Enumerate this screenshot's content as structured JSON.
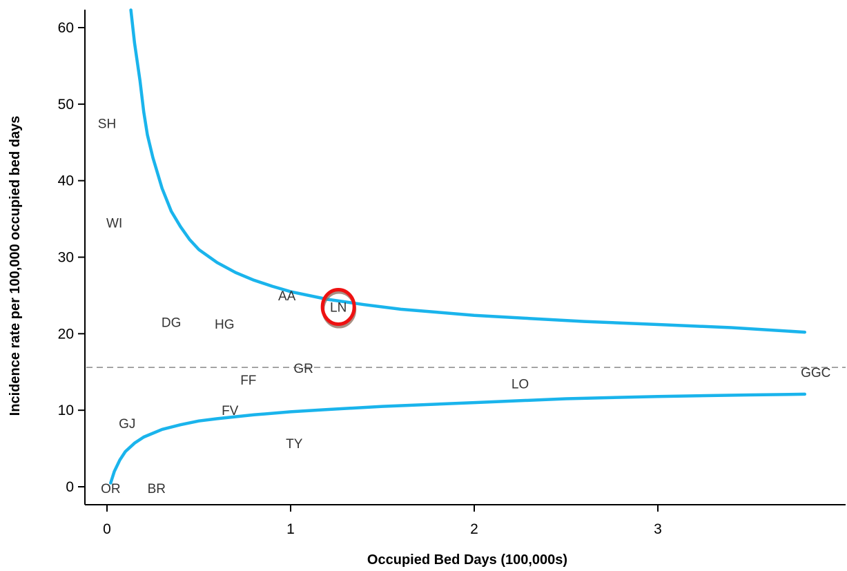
{
  "chart_data": {
    "type": "scatter",
    "title": "",
    "xlabel": "Occupied Bed Days (100,000s)",
    "ylabel": "Incidence rate per 100,000 occupied bed days",
    "xlim": [
      -0.12,
      4.05
    ],
    "ylim": [
      -2.5,
      62.5
    ],
    "x_ticks": [
      0,
      1,
      2,
      3
    ],
    "y_ticks": [
      0,
      10,
      20,
      30,
      40,
      50,
      60
    ],
    "grid": false,
    "mean_line": {
      "y": 15.6,
      "style": "dashed",
      "color": "#888888"
    },
    "control_limits": {
      "color": "#1ab4ec",
      "upper": [
        [
          0.13,
          62.3
        ],
        [
          0.15,
          58.0
        ],
        [
          0.18,
          53.0
        ],
        [
          0.2,
          49.0
        ],
        [
          0.22,
          46.0
        ],
        [
          0.25,
          43.0
        ],
        [
          0.3,
          39.0
        ],
        [
          0.35,
          36.0
        ],
        [
          0.4,
          34.0
        ],
        [
          0.45,
          32.3
        ],
        [
          0.5,
          31.0
        ],
        [
          0.6,
          29.3
        ],
        [
          0.7,
          28.0
        ],
        [
          0.8,
          27.0
        ],
        [
          0.9,
          26.2
        ],
        [
          1.0,
          25.5
        ],
        [
          1.2,
          24.5
        ],
        [
          1.4,
          23.8
        ],
        [
          1.6,
          23.2
        ],
        [
          1.8,
          22.8
        ],
        [
          2.0,
          22.4
        ],
        [
          2.3,
          22.0
        ],
        [
          2.6,
          21.6
        ],
        [
          3.0,
          21.2
        ],
        [
          3.4,
          20.8
        ],
        [
          3.8,
          20.2
        ]
      ],
      "lower": [
        [
          0.02,
          0.5
        ],
        [
          0.04,
          2.0
        ],
        [
          0.07,
          3.5
        ],
        [
          0.1,
          4.6
        ],
        [
          0.15,
          5.7
        ],
        [
          0.2,
          6.5
        ],
        [
          0.3,
          7.5
        ],
        [
          0.4,
          8.1
        ],
        [
          0.5,
          8.6
        ],
        [
          0.6,
          8.9
        ],
        [
          0.8,
          9.4
        ],
        [
          1.0,
          9.8
        ],
        [
          1.2,
          10.1
        ],
        [
          1.5,
          10.5
        ],
        [
          2.0,
          11.0
        ],
        [
          2.5,
          11.5
        ],
        [
          3.0,
          11.8
        ],
        [
          3.5,
          12.0
        ],
        [
          3.8,
          12.1
        ]
      ]
    },
    "points": [
      {
        "label": "SH",
        "x": 0.0,
        "y": 47.5
      },
      {
        "label": "WI",
        "x": 0.04,
        "y": 34.5
      },
      {
        "label": "DG",
        "x": 0.35,
        "y": 21.5
      },
      {
        "label": "HG",
        "x": 0.64,
        "y": 21.3
      },
      {
        "label": "AA",
        "x": 0.98,
        "y": 25.0
      },
      {
        "label": "LN",
        "x": 1.26,
        "y": 23.5
      },
      {
        "label": "GR",
        "x": 1.07,
        "y": 15.5
      },
      {
        "label": "FF",
        "x": 0.77,
        "y": 14.0
      },
      {
        "label": "FV",
        "x": 0.67,
        "y": 10.0
      },
      {
        "label": "GJ",
        "x": 0.11,
        "y": 8.3
      },
      {
        "label": "TY",
        "x": 1.02,
        "y": 5.7
      },
      {
        "label": "OR",
        "x": 0.02,
        "y": -0.2
      },
      {
        "label": "BR",
        "x": 0.27,
        "y": -0.2
      },
      {
        "label": "LO",
        "x": 2.25,
        "y": 13.5
      },
      {
        "label": "GGC",
        "x": 3.86,
        "y": 15.0
      }
    ],
    "highlight": {
      "label": "LN",
      "color": "#ee1111"
    }
  }
}
